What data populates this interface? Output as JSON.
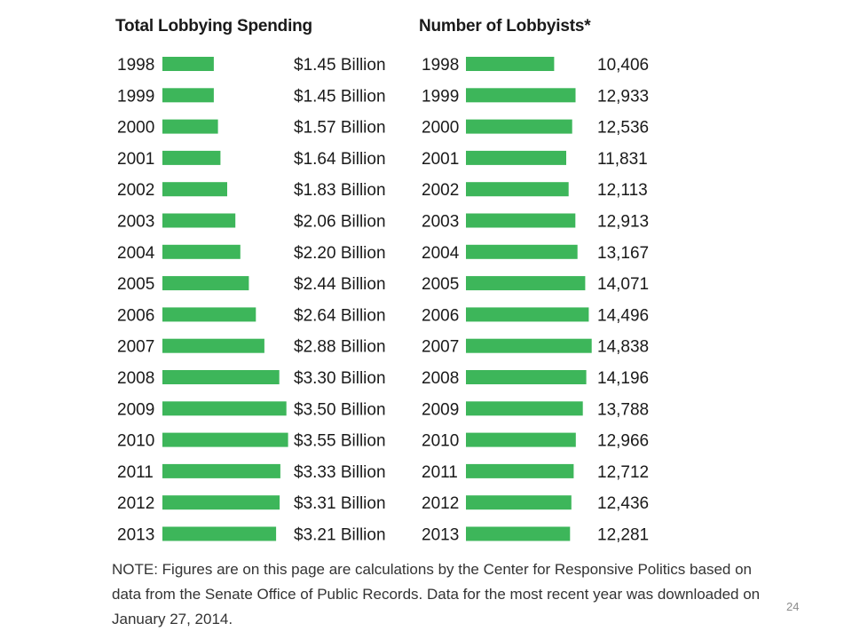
{
  "colors": {
    "bar": "#3db65a",
    "text": "#1a1a1a"
  },
  "chart_data": [
    {
      "type": "bar",
      "orientation": "horizontal",
      "title": "Total Lobbying Spending",
      "categories": [
        "1998",
        "1999",
        "2000",
        "2001",
        "2002",
        "2003",
        "2004",
        "2005",
        "2006",
        "2007",
        "2008",
        "2009",
        "2010",
        "2011",
        "2012",
        "2013"
      ],
      "values": [
        1.45,
        1.45,
        1.57,
        1.64,
        1.83,
        2.06,
        2.2,
        2.44,
        2.64,
        2.88,
        3.3,
        3.5,
        3.55,
        3.33,
        3.31,
        3.21
      ],
      "value_labels": [
        "$1.45 Billion",
        "$1.45 Billion",
        "$1.57 Billion",
        "$1.64 Billion",
        "$1.83 Billion",
        "$2.06 Billion",
        "$2.20 Billion",
        "$2.44 Billion",
        "$2.64 Billion",
        "$2.88 Billion",
        "$3.30 Billion",
        "$3.50 Billion",
        "$3.55 Billion",
        "$3.33 Billion",
        "$3.31 Billion",
        "$3.21 Billion"
      ],
      "grid": false,
      "legend": "none"
    },
    {
      "type": "bar",
      "orientation": "horizontal",
      "title": "Number of Lobbyists*",
      "categories": [
        "1998",
        "1999",
        "2000",
        "2001",
        "2002",
        "2003",
        "2004",
        "2005",
        "2006",
        "2007",
        "2008",
        "2009",
        "2010",
        "2011",
        "2012",
        "2013"
      ],
      "values": [
        10406,
        12933,
        12536,
        11831,
        12113,
        12913,
        13167,
        14071,
        14496,
        14838,
        14196,
        13788,
        12966,
        12712,
        12436,
        12281
      ],
      "value_labels": [
        "10,406",
        "12,933",
        "12,536",
        "11,831",
        "12,113",
        "12,913",
        "13,167",
        "14,071",
        "14,496",
        "14,838",
        "14,196",
        "13,788",
        "12,966",
        "12,712",
        "12,436",
        "12,281"
      ],
      "grid": false,
      "legend": "none"
    }
  ],
  "note": "NOTE: Figures are on this page are calculations by the Center for Responsive Politics based on data from the Senate Office of Public Records. Data for the most recent year was downloaded on January 27, 2014.",
  "page_number": "24"
}
